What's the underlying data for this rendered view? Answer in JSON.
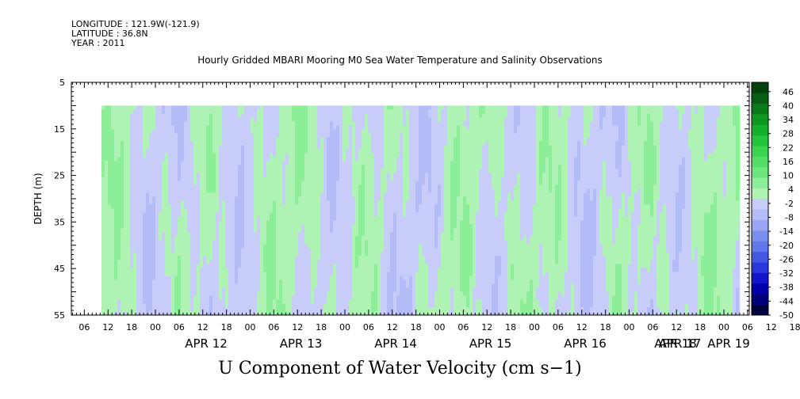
{
  "header": {
    "longitude": "LONGITUDE : 121.9W(-121.9)",
    "latitude": "LATITUDE : 36.8N",
    "year": "YEAR : 2011"
  },
  "chart_data": {
    "type": "heatmap",
    "title": "Hourly Gridded MBARI Mooring M0 Sea Water Temperature and Salinity Observations",
    "bottom_title": "U Component of Water Velocity (cm s−1)",
    "ylabel": "DEPTH (m)",
    "y_range": [
      5,
      55
    ],
    "y_reversed": true,
    "y_ticks": [
      "5",
      "15",
      "25",
      "35",
      "45",
      "55"
    ],
    "x_hour_ticks": [
      "06",
      "12",
      "18",
      "00",
      "06",
      "12",
      "18",
      "00",
      "06",
      "12",
      "18",
      "00",
      "06",
      "12",
      "18",
      "00",
      "06",
      "12",
      "18",
      "00",
      "06",
      "12",
      "18",
      "00",
      "06",
      "12",
      "18",
      "00",
      "06",
      "12",
      "18",
      "00"
    ],
    "x_day_labels": [
      "APR 12",
      "APR 13",
      "APR 14",
      "APR 15",
      "APR 16",
      "APR 17",
      "APR 18",
      "APR 19"
    ],
    "data_depth_range": [
      10,
      55
    ],
    "colorbar": {
      "labels": [
        "46",
        "40",
        "34",
        "28",
        "22",
        "16",
        "10",
        "4",
        "-2",
        "-8",
        "-14",
        "-20",
        "-26",
        "-32",
        "-38",
        "-44",
        "-50"
      ],
      "range": [
        -50,
        50
      ],
      "colors_low_to_high": [
        "#000040",
        "#00007a",
        "#0000aa",
        "#1414cc",
        "#2a36de",
        "#4458e4",
        "#6078ea",
        "#7a8ff0",
        "#9aa6f4",
        "#b4bcf7",
        "#c8ccf9",
        "#aef3b4",
        "#8cee98",
        "#6ee67e",
        "#52de66",
        "#38d44e",
        "#22c63a",
        "#14b02c",
        "#0c9622",
        "#087a1a",
        "#055e12",
        "#03420c"
      ]
    }
  }
}
